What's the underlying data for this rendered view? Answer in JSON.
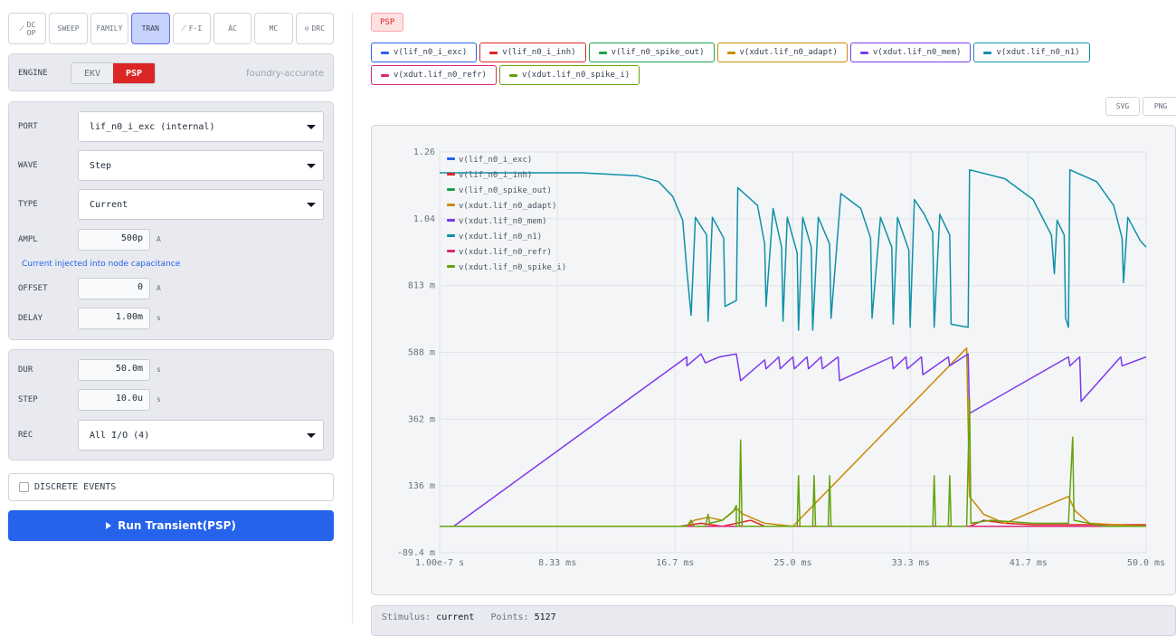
{
  "modes": [
    {
      "label": "DC\nOP",
      "icon": "chart-line-icon",
      "glyph": "⟋"
    },
    {
      "label": "SWEEP",
      "icon": "",
      "glyph": ""
    },
    {
      "label": "FAMILY",
      "icon": "",
      "glyph": ""
    },
    {
      "label": "TRAN",
      "icon": "",
      "glyph": "",
      "active": true
    },
    {
      "label": "F-I",
      "icon": "chart-line-icon",
      "glyph": "⟋"
    },
    {
      "label": "AC",
      "icon": "",
      "glyph": ""
    },
    {
      "label": "MC",
      "icon": "",
      "glyph": ""
    },
    {
      "label": "DRC",
      "icon": "check-circle-icon",
      "glyph": "⊙"
    }
  ],
  "engine": {
    "label": "ENGINE",
    "options": [
      "EKV",
      "PSP"
    ],
    "selected": "PSP",
    "note": "foundry-accurate"
  },
  "stimulus": {
    "port": {
      "label": "PORT",
      "value": "lif_n0_i_exc (internal)"
    },
    "wave": {
      "label": "WAVE",
      "value": "Step"
    },
    "type": {
      "label": "TYPE",
      "value": "Current"
    },
    "ampl": {
      "label": "AMPL",
      "value": "500p",
      "unit": "A"
    },
    "hint": "Current injected into node capacitance",
    "offset": {
      "label": "OFFSET",
      "value": "0",
      "unit": "A"
    },
    "delay": {
      "label": "DELAY",
      "value": "1.00m",
      "unit": "s"
    }
  },
  "sim": {
    "dur": {
      "label": "DUR",
      "value": "50.0m",
      "unit": "s"
    },
    "step": {
      "label": "STEP",
      "value": "10.0u",
      "unit": "s"
    },
    "rec": {
      "label": "REC",
      "value": "All I/O (4)"
    }
  },
  "discrete": {
    "label": "DISCRETE EVENTS",
    "checked": false
  },
  "run": {
    "label": "Run Transient(PSP)",
    "icon": "play-icon"
  },
  "result_badge": "PSP",
  "export": {
    "svg": "SVG",
    "png": "PNG"
  },
  "footer": {
    "stimulus_label": "Stimulus:",
    "stimulus_value": "current",
    "points_label": "Points:",
    "points_value": "5127"
  },
  "chart_data": {
    "type": "line",
    "xlabel": "",
    "ylabel": "",
    "x_ticks": [
      "1.00e-7 s",
      "8.33 ms",
      "16.7 ms",
      "25.0 ms",
      "33.3 ms",
      "41.7 ms",
      "50.0 ms"
    ],
    "y_ticks": [
      "1.26",
      "1.04",
      "813 m",
      "588 m",
      "362 m",
      "136 m",
      "-89.4 m"
    ],
    "xlim": [
      0,
      50
    ],
    "ylim": [
      -0.0894,
      1.26
    ],
    "x_unit": "ms",
    "y_unit": "V",
    "grid": true,
    "legend": "top-left",
    "series": [
      {
        "name": "v(lif_n0_i_exc)",
        "color": "#2563eb",
        "points": [
          [
            0,
            0
          ],
          [
            50,
            0
          ]
        ]
      },
      {
        "name": "v(lif_n0_i_inh)",
        "color": "#dc2626",
        "points": [
          [
            0,
            0
          ],
          [
            17,
            0
          ],
          [
            18.5,
            0.01
          ],
          [
            20,
            0
          ],
          [
            22,
            0.02
          ],
          [
            23,
            0
          ],
          [
            37.5,
            0
          ],
          [
            38.5,
            0.02
          ],
          [
            40,
            0.01
          ],
          [
            42,
            0.005
          ],
          [
            48,
            0.005
          ],
          [
            50,
            0.005
          ]
        ]
      },
      {
        "name": "v(lif_n0_spike_out)",
        "color": "#16a34a",
        "points": [
          [
            0,
            0
          ],
          [
            50,
            0
          ]
        ]
      },
      {
        "name": "v(xdut.lif_n0_adapt)",
        "color": "#ca8a04",
        "points": [
          [
            0,
            0
          ],
          [
            17.5,
            0
          ],
          [
            18,
            0.02
          ],
          [
            19,
            0.03
          ],
          [
            20,
            0.02
          ],
          [
            21,
            0.06
          ],
          [
            21.5,
            0.04
          ],
          [
            23,
            0.01
          ],
          [
            25,
            0
          ],
          [
            37.3,
            0.6
          ],
          [
            37.5,
            0.1
          ],
          [
            38.5,
            0.04
          ],
          [
            40,
            0.01
          ],
          [
            44.5,
            0.1
          ],
          [
            45,
            0.05
          ],
          [
            46,
            0.01
          ],
          [
            50,
            0
          ]
        ]
      },
      {
        "name": "v(xdut.lif_n0_mem)",
        "color": "#7c3aed",
        "points": [
          [
            1,
            0
          ],
          [
            17.5,
            0.57
          ],
          [
            17.5,
            0.54
          ],
          [
            18.5,
            0.58
          ],
          [
            18.8,
            0.55
          ],
          [
            19.8,
            0.57
          ],
          [
            21,
            0.58
          ],
          [
            21.3,
            0.49
          ],
          [
            23,
            0.56
          ],
          [
            23.1,
            0.53
          ],
          [
            24,
            0.57
          ],
          [
            24.1,
            0.53
          ],
          [
            25,
            0.57
          ],
          [
            25.1,
            0.53
          ],
          [
            26,
            0.57
          ],
          [
            26.1,
            0.53
          ],
          [
            27,
            0.57
          ],
          [
            27.1,
            0.53
          ],
          [
            28.2,
            0.57
          ],
          [
            28.3,
            0.49
          ],
          [
            32,
            0.57
          ],
          [
            32.1,
            0.53
          ],
          [
            33,
            0.57
          ],
          [
            33.1,
            0.53
          ],
          [
            34.1,
            0.57
          ],
          [
            34.2,
            0.51
          ],
          [
            36,
            0.57
          ],
          [
            36.1,
            0.54
          ],
          [
            37.4,
            0.58
          ],
          [
            37.5,
            0.38
          ],
          [
            44.5,
            0.57
          ],
          [
            44.6,
            0.54
          ],
          [
            45.3,
            0.57
          ],
          [
            45.4,
            0.42
          ],
          [
            48.2,
            0.57
          ],
          [
            48.3,
            0.54
          ],
          [
            50,
            0.57
          ]
        ]
      },
      {
        "name": "v(xdut.lif_n0_n1)",
        "color": "#0e91a8",
        "points": [
          [
            0,
            1.19
          ],
          [
            10,
            1.19
          ],
          [
            14,
            1.18
          ],
          [
            15.5,
            1.16
          ],
          [
            16.5,
            1.11
          ],
          [
            17.2,
            1.03
          ],
          [
            17.5,
            0.86
          ],
          [
            17.8,
            0.71
          ],
          [
            18.1,
            1.04
          ],
          [
            18.9,
            0.98
          ],
          [
            19.0,
            0.69
          ],
          [
            19.3,
            1.04
          ],
          [
            20.1,
            0.97
          ],
          [
            20.2,
            0.74
          ],
          [
            21,
            0.76
          ],
          [
            21.1,
            1.14
          ],
          [
            22.5,
            1.08
          ],
          [
            23,
            0.95
          ],
          [
            23.1,
            0.74
          ],
          [
            23.6,
            1.07
          ],
          [
            24.2,
            0.94
          ],
          [
            24.3,
            0.69
          ],
          [
            24.6,
            1.04
          ],
          [
            25.3,
            0.92
          ],
          [
            25.4,
            0.66
          ],
          [
            25.7,
            1.04
          ],
          [
            26.3,
            0.94
          ],
          [
            26.4,
            0.66
          ],
          [
            26.8,
            1.04
          ],
          [
            27.6,
            0.95
          ],
          [
            27.7,
            0.7
          ],
          [
            28.4,
            1.12
          ],
          [
            29.8,
            1.07
          ],
          [
            30.5,
            0.97
          ],
          [
            30.6,
            0.7
          ],
          [
            31.2,
            1.04
          ],
          [
            32,
            0.94
          ],
          [
            32.1,
            0.68
          ],
          [
            32.4,
            1.04
          ],
          [
            33.2,
            0.93
          ],
          [
            33.3,
            0.67
          ],
          [
            33.6,
            1.1
          ],
          [
            34.3,
            1.05
          ],
          [
            34.9,
            0.99
          ],
          [
            35.0,
            0.67
          ],
          [
            35.4,
            1.05
          ],
          [
            36.1,
            0.98
          ],
          [
            36.2,
            0.68
          ],
          [
            37.4,
            0.67
          ],
          [
            37.5,
            1.2
          ],
          [
            40,
            1.17
          ],
          [
            42,
            1.1
          ],
          [
            43.3,
            0.98
          ],
          [
            43.5,
            0.85
          ],
          [
            43.7,
            1.03
          ],
          [
            44.2,
            0.98
          ],
          [
            44.3,
            0.7
          ],
          [
            44.5,
            0.67
          ],
          [
            44.6,
            1.2
          ],
          [
            46.5,
            1.16
          ],
          [
            47.7,
            1.08
          ],
          [
            48.3,
            0.97
          ],
          [
            48.4,
            0.82
          ],
          [
            48.7,
            1.04
          ],
          [
            49.6,
            0.96
          ],
          [
            50,
            0.94
          ]
        ]
      },
      {
        "name": "v(xdut.lif_n0_refr)",
        "color": "#db2777",
        "points": [
          [
            0,
            0
          ],
          [
            50,
            0
          ]
        ]
      },
      {
        "name": "v(xdut.lif_n0_spike_i)",
        "color": "#65a30d",
        "points": [
          [
            0,
            0
          ],
          [
            17.5,
            0
          ],
          [
            17.8,
            0.02
          ],
          [
            18.0,
            0.0
          ],
          [
            18.8,
            0.0
          ],
          [
            19.0,
            0.04
          ],
          [
            19.1,
            0.01
          ],
          [
            20,
            0.02
          ],
          [
            20.8,
            0.05
          ],
          [
            21.0,
            0.07
          ],
          [
            21.0,
            0.0
          ],
          [
            21.2,
            0.0
          ],
          [
            21.3,
            0.29
          ],
          [
            21.4,
            0.0
          ],
          [
            25.3,
            0.0
          ],
          [
            25.4,
            0.17
          ],
          [
            25.5,
            0.0
          ],
          [
            26.4,
            0.0
          ],
          [
            26.5,
            0.17
          ],
          [
            26.6,
            0.0
          ],
          [
            27.5,
            0.0
          ],
          [
            27.6,
            0.17
          ],
          [
            27.7,
            0.0
          ],
          [
            34.9,
            0.0
          ],
          [
            35.0,
            0.17
          ],
          [
            35.1,
            0.0
          ],
          [
            36.0,
            0.0
          ],
          [
            36.1,
            0.17
          ],
          [
            36.2,
            0.0
          ],
          [
            37.3,
            0.0
          ],
          [
            37.5,
            0.43
          ],
          [
            37.6,
            0.01
          ],
          [
            39,
            0.02
          ],
          [
            42,
            0.01
          ],
          [
            44.5,
            0.01
          ],
          [
            44.8,
            0.3
          ],
          [
            44.9,
            0.02
          ],
          [
            47,
            0.0
          ],
          [
            50,
            0.0
          ]
        ]
      }
    ]
  }
}
